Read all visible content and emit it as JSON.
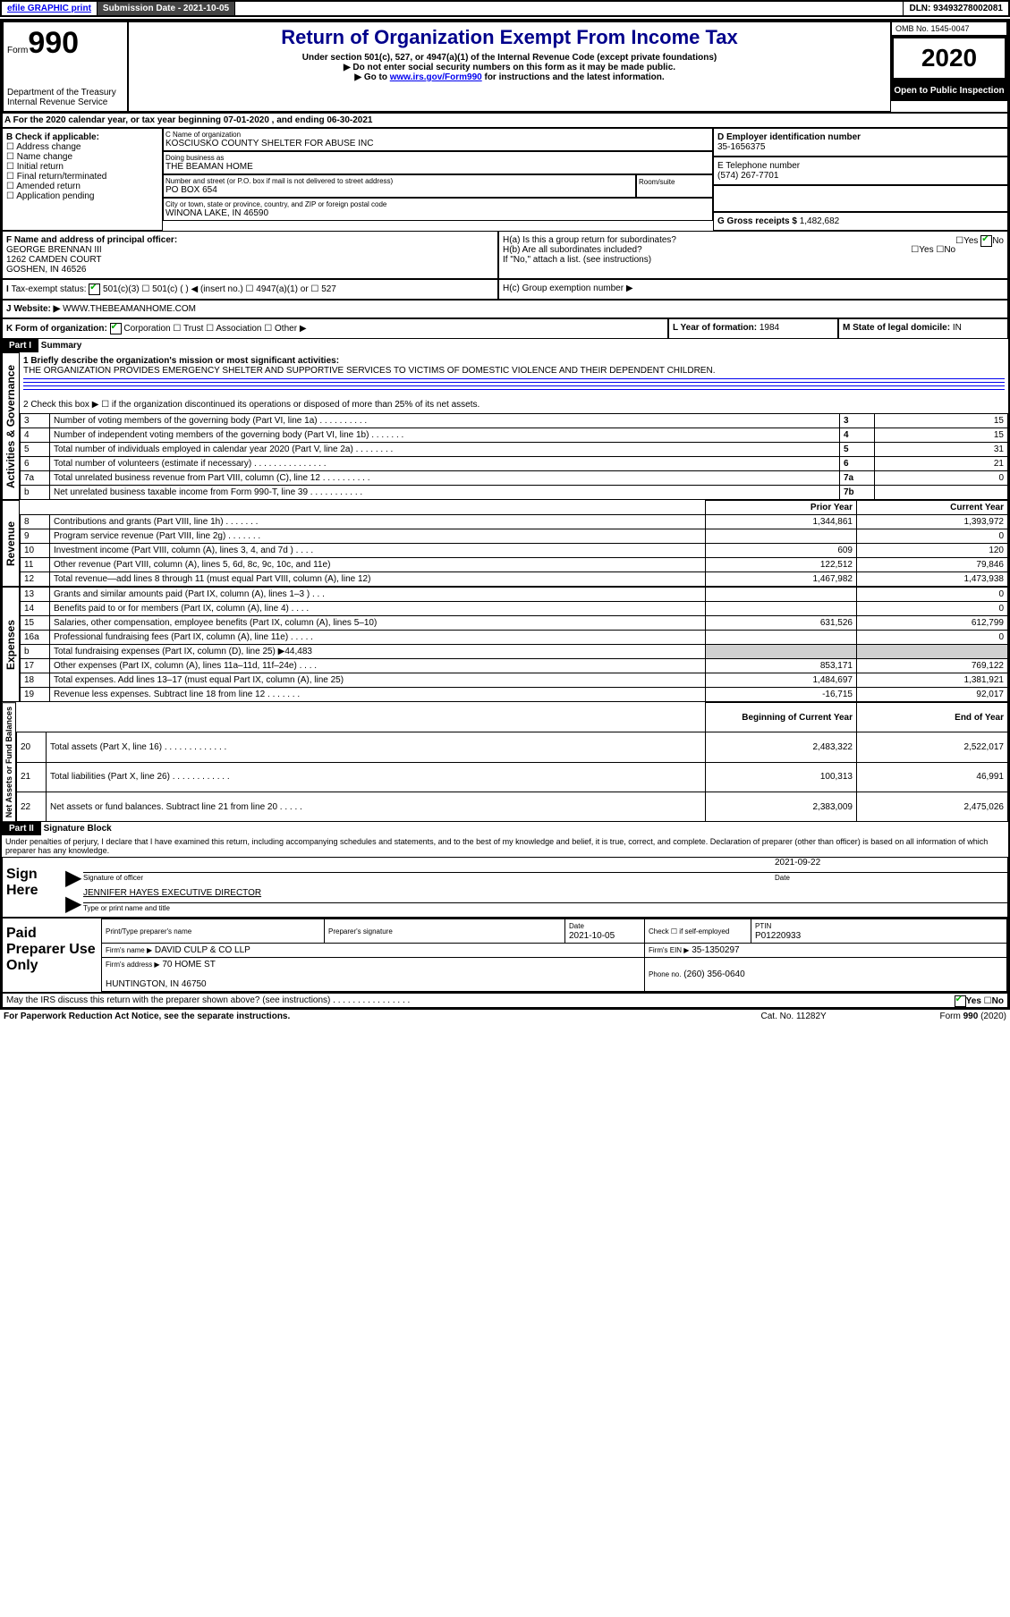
{
  "hdr": {
    "efile": "efile GRAPHIC print",
    "sub": "Submission Date - 2021-10-05",
    "dln": "DLN: 93493278002081"
  },
  "omb": "OMB No. 1545-0047",
  "form": {
    "no": "990",
    "title": "Return of Organization Exempt From Income Tax",
    "sub1": "Under section 501(c), 527, or 4947(a)(1) of the Internal Revenue Code (except private foundations)",
    "sub2": "▶ Do not enter social security numbers on this form as it may be made public.",
    "sub3": "▶ Go to www.irs.gov/Form990 for instructions and the latest information.",
    "dept": "Department of the Treasury\nInternal Revenue Service"
  },
  "year": "2020",
  "open": "Open to Public Inspection",
  "period": "For the 2020 calendar year, or tax year beginning 07-01-2020   , and ending 06-30-2021",
  "B": {
    "hdr": "B Check if applicable:",
    "opts": [
      "Address change",
      "Name change",
      "Initial return",
      "Final return/terminated",
      "Amended return",
      "Application pending"
    ]
  },
  "C": {
    "lbl": "C Name of organization",
    "name": "KOSCIUSKO COUNTY SHELTER FOR ABUSE INC",
    "dba_l": "Doing business as",
    "dba": "THE BEAMAN HOME",
    "addr_l": "Number and street (or P.O. box if mail is not delivered to street address)",
    "room": "Room/suite",
    "addr": "PO BOX 654",
    "city_l": "City or town, state or province, country, and ZIP or foreign postal code",
    "city": "WINONA LAKE, IN  46590"
  },
  "D": {
    "lbl": "D Employer identification number",
    "v": "35-1656375"
  },
  "E": {
    "lbl": "E Telephone number",
    "v": "(574) 267-7701"
  },
  "G": {
    "lbl": "G Gross receipts $",
    "v": "1,482,682"
  },
  "F": {
    "lbl": "F  Name and address of principal officer:",
    "v": "GEORGE BRENNAN III\n1262 CAMDEN COURT\nGOSHEN, IN  46526"
  },
  "H": {
    "a": "H(a)  Is this a group return for subordinates?",
    "b": "H(b)  Are all subordinates included?",
    "bno": "If \"No,\" attach a list. (see instructions)",
    "c": "H(c)  Group exemption number ▶",
    "yes": "Yes",
    "no": "No"
  },
  "I": {
    "lbl": "Tax-exempt status:",
    "o501c3": "501(c)(3)",
    "o501c": "501(c) (  ) ◀ (insert no.)",
    "o4947": "4947(a)(1) or",
    "o527": "527"
  },
  "J": {
    "lbl": "Website: ▶",
    "v": "WWW.THEBEAMANHOME.COM"
  },
  "K": {
    "lbl": "K Form of organization:",
    "corp": "Corporation",
    "trust": "Trust",
    "assoc": "Association",
    "other": "Other ▶"
  },
  "L": {
    "lbl": "L Year of formation:",
    "v": "1984"
  },
  "M": {
    "lbl": "M State of legal domicile:",
    "v": "IN"
  },
  "part1": {
    "hdr": "Part I",
    "title": "Summary"
  },
  "q1": {
    "lbl": "1  Briefly describe the organization's mission or most significant activities:",
    "txt": "THE ORGANIZATION PROVIDES EMERGENCY SHELTER AND SUPPORTIVE SERVICES TO VICTIMS OF DOMESTIC VIOLENCE AND THEIR DEPENDENT CHILDREN."
  },
  "q2": "2   Check this box ▶ ☐  if the organization discontinued its operations or disposed of more than 25% of its net assets.",
  "gov": [
    {
      "n": "3",
      "t": "Number of voting members of the governing body (Part VI, line 1a)   .   .   .   .   .   .   .   .   .   .",
      "b": "3",
      "v": "15"
    },
    {
      "n": "4",
      "t": "Number of independent voting members of the governing body (Part VI, line 1b)   .   .   .   .   .   .   .",
      "b": "4",
      "v": "15"
    },
    {
      "n": "5",
      "t": "Total number of individuals employed in calendar year 2020 (Part V, line 2a)   .   .   .   .   .   .   .   .",
      "b": "5",
      "v": "31"
    },
    {
      "n": "6",
      "t": "Total number of volunteers (estimate if necessary)   .   .   .   .   .   .   .   .   .   .   .   .   .   .   .",
      "b": "6",
      "v": "21"
    },
    {
      "n": "7a",
      "t": "Total unrelated business revenue from Part VIII, column (C), line 12   .   .   .   .   .   .   .   .   .   .",
      "b": "7a",
      "v": "0"
    },
    {
      "n": "b",
      "t": "Net unrelated business taxable income from Form 990-T, line 39   .   .   .   .   .   .   .   .   .   .   .",
      "b": "7b",
      "v": ""
    }
  ],
  "cols": {
    "py": "Prior Year",
    "cy": "Current Year",
    "bcy": "Beginning of Current Year",
    "eoy": "End of Year"
  },
  "rev": [
    {
      "n": "8",
      "t": "Contributions and grants (Part VIII, line 1h)   .   .   .   .   .   .   .",
      "p": "1,344,861",
      "c": "1,393,972"
    },
    {
      "n": "9",
      "t": "Program service revenue (Part VIII, line 2g)   .   .   .   .   .   .   .",
      "p": "",
      "c": "0"
    },
    {
      "n": "10",
      "t": "Investment income (Part VIII, column (A), lines 3, 4, and 7d )   .   .   .   .",
      "p": "609",
      "c": "120"
    },
    {
      "n": "11",
      "t": "Other revenue (Part VIII, column (A), lines 5, 6d, 8c, 9c, 10c, and 11e)",
      "p": "122,512",
      "c": "79,846"
    },
    {
      "n": "12",
      "t": "Total revenue—add lines 8 through 11 (must equal Part VIII, column (A), line 12)",
      "p": "1,467,982",
      "c": "1,473,938"
    }
  ],
  "exp": [
    {
      "n": "13",
      "t": "Grants and similar amounts paid (Part IX, column (A), lines 1–3 )   .   .   .",
      "p": "",
      "c": "0"
    },
    {
      "n": "14",
      "t": "Benefits paid to or for members (Part IX, column (A), line 4)   .   .   .   .",
      "p": "",
      "c": "0"
    },
    {
      "n": "15",
      "t": "Salaries, other compensation, employee benefits (Part IX, column (A), lines 5–10)",
      "p": "631,526",
      "c": "612,799"
    },
    {
      "n": "16a",
      "t": "Professional fundraising fees (Part IX, column (A), line 11e)   .   .   .   .   .",
      "p": "",
      "c": "0"
    },
    {
      "n": "b",
      "t": "Total fundraising expenses (Part IX, column (D), line 25) ▶44,483",
      "p": "GRAY",
      "c": "GRAY"
    },
    {
      "n": "17",
      "t": "Other expenses (Part IX, column (A), lines 11a–11d, 11f–24e)   .   .   .   .",
      "p": "853,171",
      "c": "769,122"
    },
    {
      "n": "18",
      "t": "Total expenses. Add lines 13–17 (must equal Part IX, column (A), line 25)",
      "p": "1,484,697",
      "c": "1,381,921"
    },
    {
      "n": "19",
      "t": "Revenue less expenses. Subtract line 18 from line 12   .   .   .   .   .   .   .",
      "p": "-16,715",
      "c": "92,017"
    }
  ],
  "net": [
    {
      "n": "20",
      "t": "Total assets (Part X, line 16)   .   .   .   .   .   .   .   .   .   .   .   .   .",
      "p": "2,483,322",
      "c": "2,522,017"
    },
    {
      "n": "21",
      "t": "Total liabilities (Part X, line 26)   .   .   .   .   .   .   .   .   .   .   .   .",
      "p": "100,313",
      "c": "46,991"
    },
    {
      "n": "22",
      "t": "Net assets or fund balances. Subtract line 21 from line 20   .   .   .   .   .",
      "p": "2,383,009",
      "c": "2,475,026"
    }
  ],
  "secs": {
    "gov": "Activities & Governance",
    "rev": "Revenue",
    "exp": "Expenses",
    "net": "Net Assets or Fund Balances"
  },
  "part2": {
    "hdr": "Part II",
    "title": "Signature Block"
  },
  "decl": "Under penalties of perjury, I declare that I have examined this return, including accompanying schedules and statements, and to the best of my knowledge and belief, it is true, correct, and complete. Declaration of preparer (other than officer) is based on all information of which preparer has any knowledge.",
  "sign": {
    "here": "Sign Here",
    "sig": "Signature of officer",
    "date": "Date",
    "dv": "2021-09-22",
    "name": "JENNIFER HAYES  EXECUTIVE DIRECTOR",
    "type": "Type or print name and title"
  },
  "prep": {
    "use": "Paid Preparer Use Only",
    "pname": "Print/Type preparer's name",
    "psig": "Preparer's signature",
    "pdate": "Date",
    "pdv": "2021-10-05",
    "pck": "Check ☐ if self-employed",
    "ptin": "PTIN",
    "ptinv": "P01220933",
    "firm": "Firm's name   ▶",
    "firmv": "DAVID CULP & CO LLP",
    "ein": "Firm's EIN ▶",
    "einv": "35-1350297",
    "addr": "Firm's address ▶",
    "addrv": "70 HOME ST\n\nHUNTINGTON, IN  46750",
    "ph": "Phone no.",
    "phv": "(260) 356-0640"
  },
  "irs": "May the IRS discuss this return with the preparer shown above? (see instructions)   .   .   .   .   .   .   .   .   .   .   .   .   .   .   .   .",
  "foot": {
    "pra": "For Paperwork Reduction Act Notice, see the separate instructions.",
    "cat": "Cat. No. 11282Y",
    "form": "Form 990 (2020)"
  }
}
